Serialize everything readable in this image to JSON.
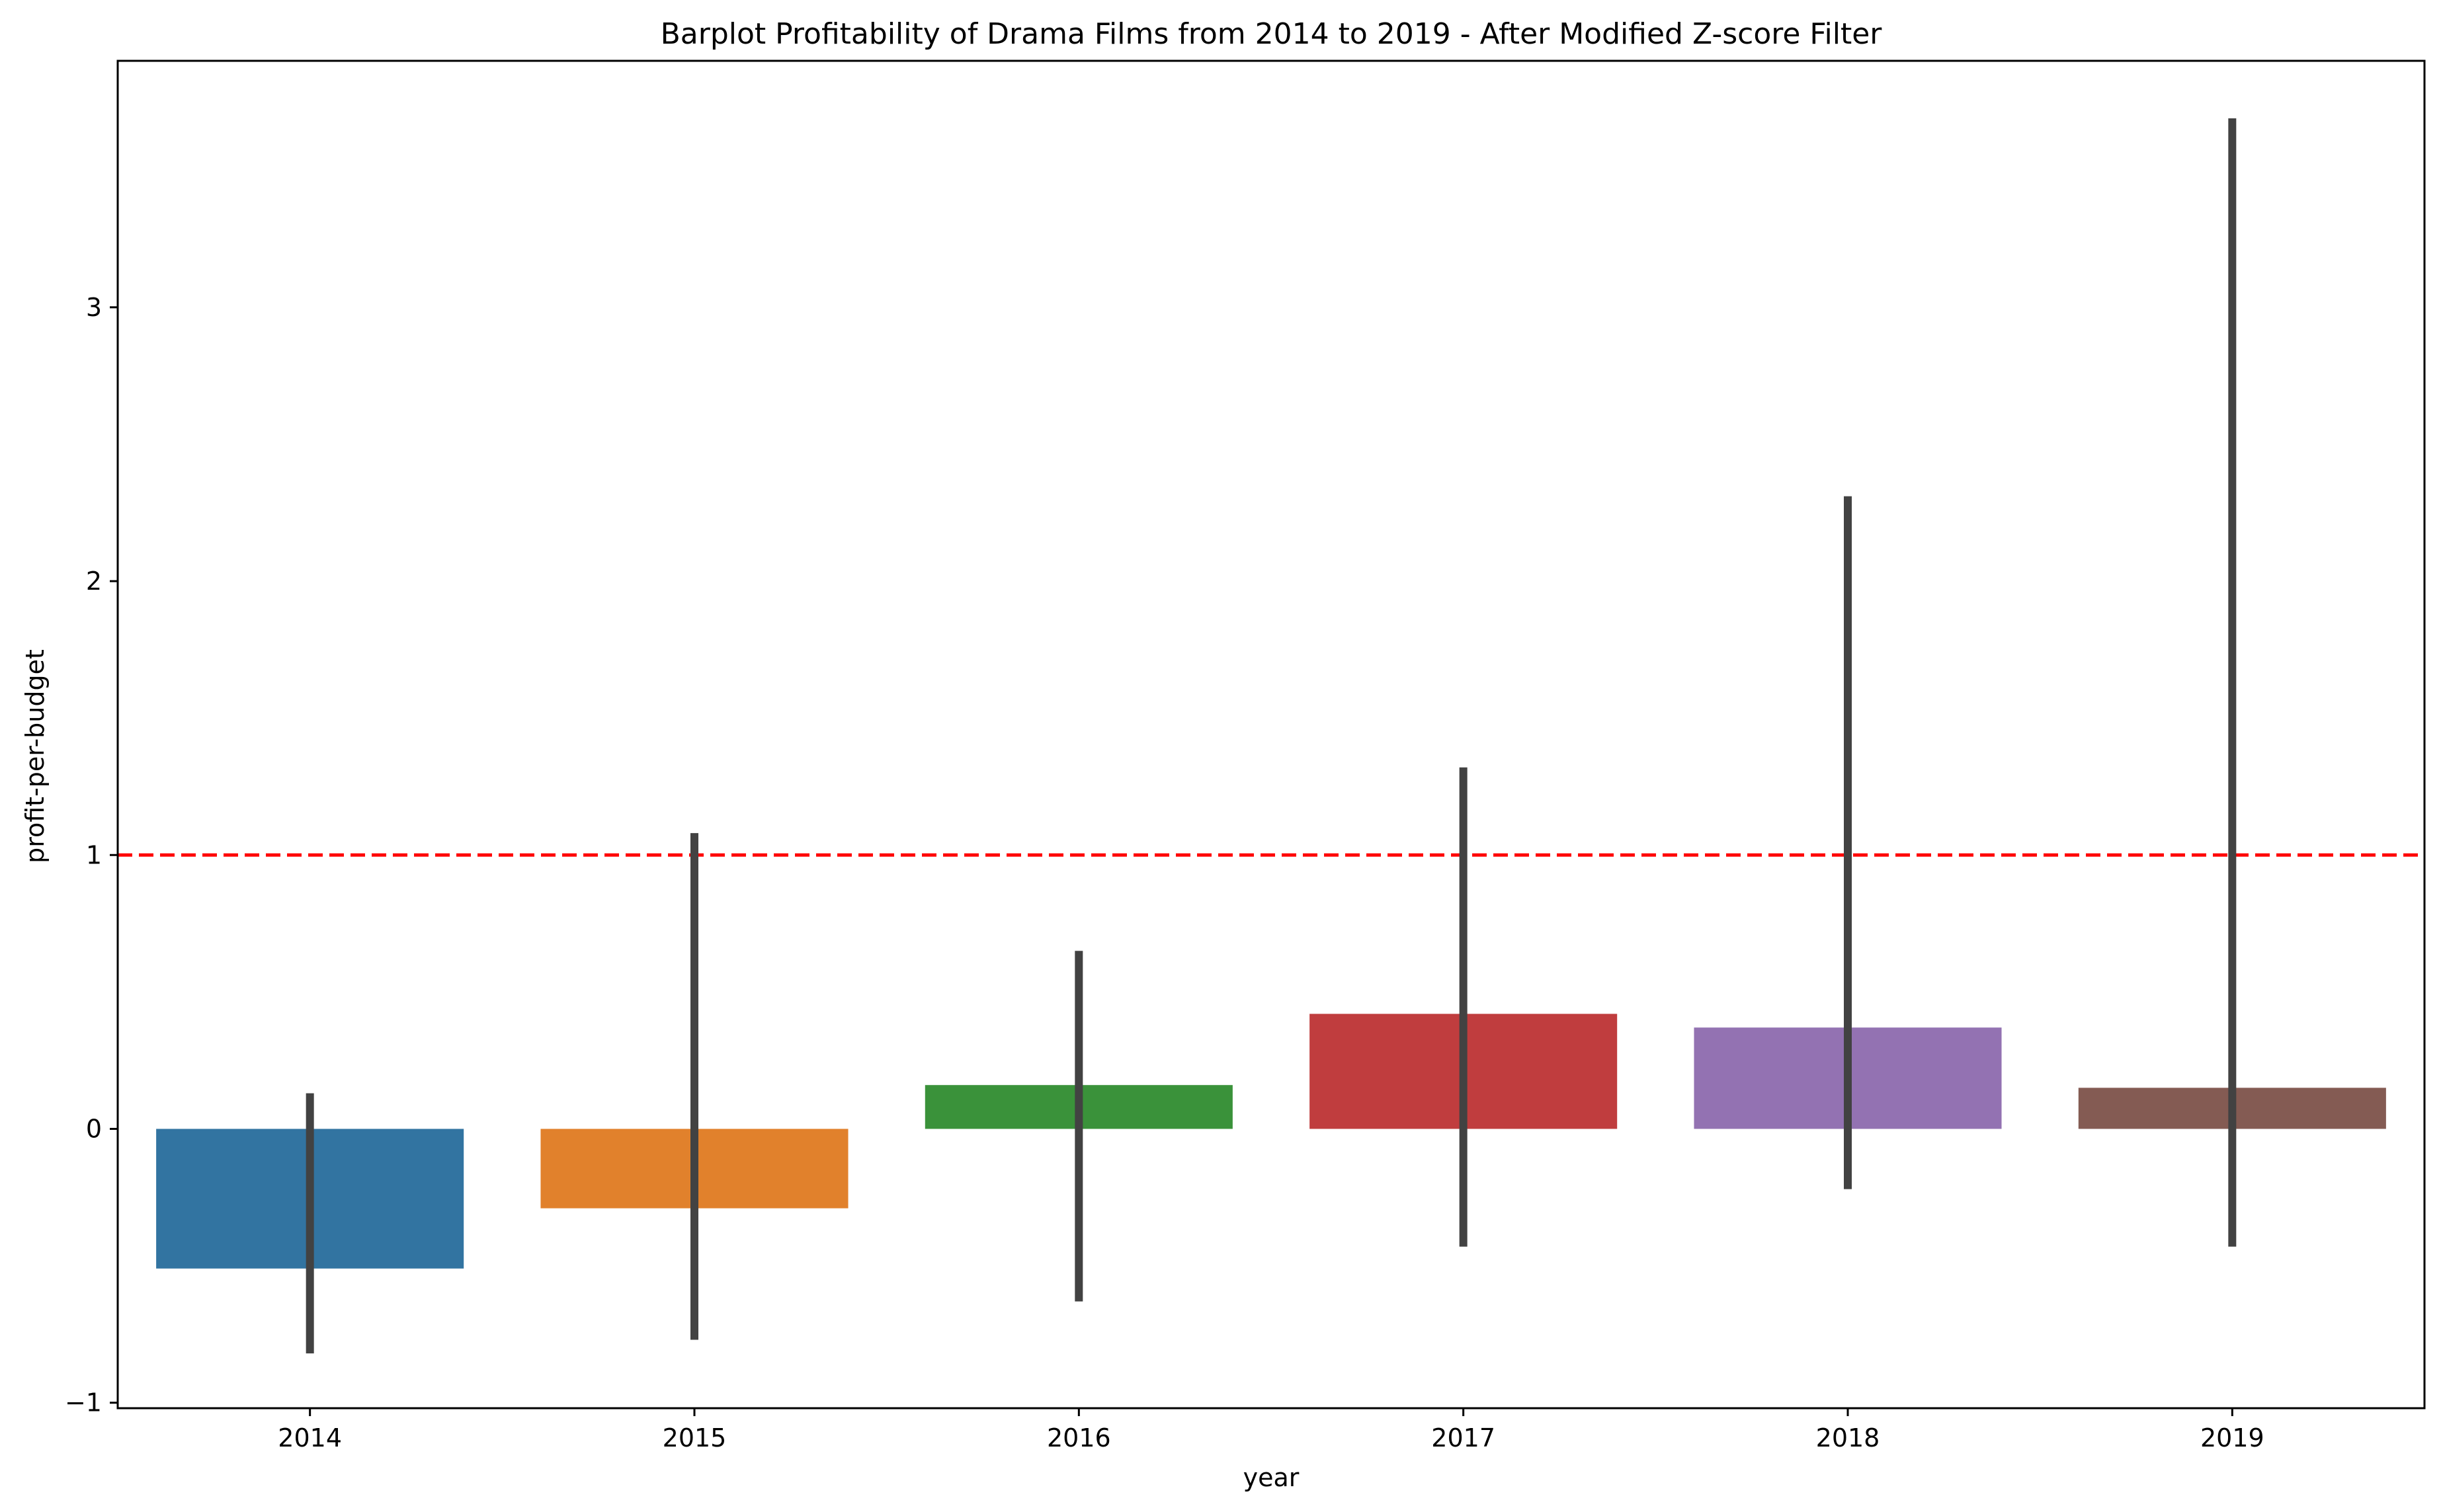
{
  "chart_data": {
    "type": "bar",
    "title": "Barplot Profitability of Drama Films from 2014 to 2019 - After Modified Z-score Filter",
    "xlabel": "year",
    "ylabel": "profit-per-budget",
    "categories": [
      "2014",
      "2015",
      "2016",
      "2017",
      "2018",
      "2019"
    ],
    "values": [
      -0.51,
      -0.29,
      0.16,
      0.42,
      0.37,
      0.15
    ],
    "error_bars": [
      {
        "low": -0.82,
        "high": 0.13
      },
      {
        "low": -0.77,
        "high": 1.08
      },
      {
        "low": -0.63,
        "high": 0.65
      },
      {
        "low": -0.43,
        "high": 1.32
      },
      {
        "low": -0.22,
        "high": 2.31
      },
      {
        "low": -0.43,
        "high": 3.69
      }
    ],
    "bar_colors": [
      "#3274a1",
      "#e1812c",
      "#3a923a",
      "#c03d3e",
      "#9372b2",
      "#845b53"
    ],
    "error_bar_color": "#424242",
    "ylim": [
      -1.02,
      3.9
    ],
    "yticks": [
      -1,
      0,
      1,
      2,
      3
    ],
    "ytick_labels": [
      "−1",
      "0",
      "1",
      "2",
      "3"
    ],
    "reference_line": {
      "y": 1,
      "color": "#ff0000",
      "style": "dashed"
    },
    "grid": false,
    "legend": "none"
  }
}
